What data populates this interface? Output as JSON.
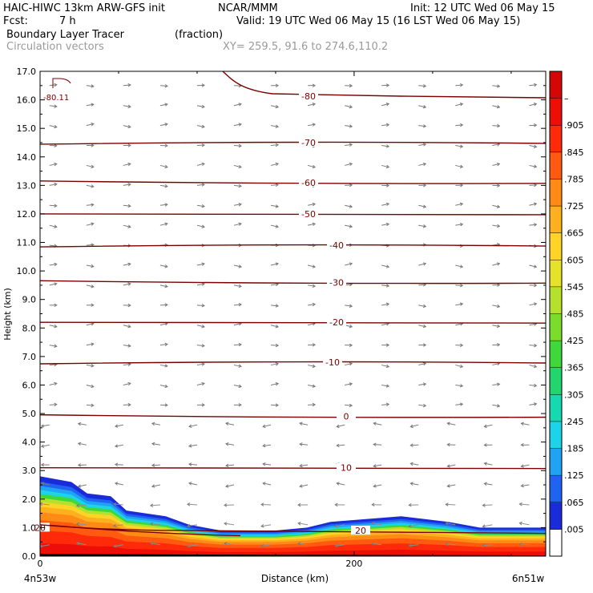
{
  "header": {
    "model": "HAIC-HIWC 13km ARW-GFS init",
    "org": "NCAR/MMM",
    "init": "Init: 12 UTC Wed 06 May 15",
    "fcst_label": "Fcst:",
    "fcst_value": "7 h",
    "valid": "Valid: 19 UTC Wed 06 May 15 (16 LST Wed 06 May 15)",
    "field": "Boundary Layer Tracer",
    "units": "(fraction)",
    "overlay": "Circulation vectors",
    "xy": "XY= 259.5, 91.6 to 274.6,110.2"
  },
  "chart_data": {
    "type": "heatmap",
    "xlabel": "Distance (km)",
    "ylabel": "Height (km)",
    "xlim": [
      0,
      322
    ],
    "ylim": [
      0,
      17
    ],
    "x_tick_labels": [
      "0",
      "200"
    ],
    "x_tick_values": [
      0,
      200
    ],
    "x_end_labels": [
      "4n53w",
      "6n51w"
    ],
    "y_ticks": [
      "0.0",
      "1.0",
      "2.0",
      "3.0",
      "4.0",
      "5.0",
      "6.0",
      "7.0",
      "8.0",
      "9.0",
      "10.0",
      "11.0",
      "12.0",
      "13.0",
      "14.0",
      "15.0",
      "16.0",
      "17.0"
    ],
    "colorbar_labels": [
      ".005",
      ".065",
      ".125",
      ".185",
      ".245",
      ".305",
      ".365",
      ".425",
      ".485",
      ".545",
      ".605",
      ".665",
      ".725",
      ".785",
      ".845",
      ".905",
      "–"
    ],
    "colorbar_colors": [
      "#ffffff",
      "#1a2bd9",
      "#1f63f0",
      "#1fa3f2",
      "#1cd3e8",
      "#17d9b0",
      "#22d56c",
      "#3fd83a",
      "#7bdc2c",
      "#b6e02e",
      "#e6e22c",
      "#ffd426",
      "#ffb01e",
      "#ff8a16",
      "#ff5a10",
      "#ff2a0a",
      "#ee0e08",
      "#d40606"
    ],
    "tracer_top_km": [
      [
        0,
        2.8
      ],
      [
        20,
        2.6
      ],
      [
        30,
        2.2
      ],
      [
        45,
        2.1
      ],
      [
        55,
        1.6
      ],
      [
        80,
        1.4
      ],
      [
        95,
        1.1
      ],
      [
        115,
        0.9
      ],
      [
        150,
        0.9
      ],
      [
        170,
        1.0
      ],
      [
        185,
        1.2
      ],
      [
        230,
        1.4
      ],
      [
        260,
        1.2
      ],
      [
        280,
        1.0
      ],
      [
        322,
        1.0
      ]
    ],
    "isotherms": [
      {
        "label": "-80.11",
        "y": 16.1
      },
      {
        "label": "-80",
        "y": 16.0
      },
      {
        "label": "-70",
        "y": 14.5
      },
      {
        "label": "-60",
        "y": 13.1
      },
      {
        "label": "-50",
        "y": 12.0
      },
      {
        "label": "-40",
        "y": 10.9
      },
      {
        "label": "-30",
        "y": 9.6
      },
      {
        "label": "-20",
        "y": 8.2
      },
      {
        "label": "-10",
        "y": 6.8
      },
      {
        "label": "0",
        "y": 4.9
      },
      {
        "label": "10",
        "y": 3.1
      },
      {
        "label": "20",
        "y": 1.0
      },
      {
        "label": "20",
        "y": 0.9
      }
    ],
    "vectors": "Circulation vectors"
  }
}
